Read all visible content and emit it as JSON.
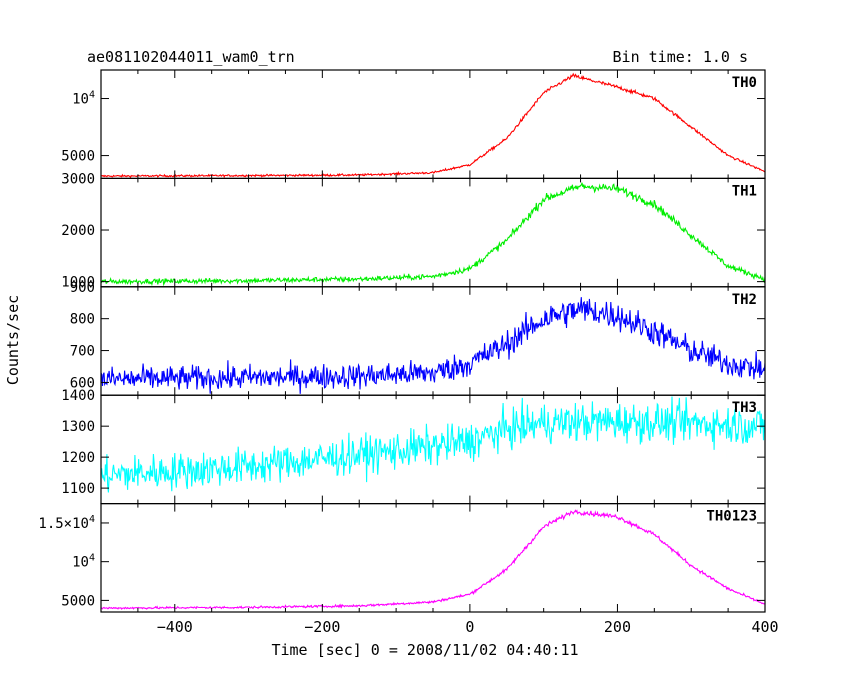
{
  "header": {
    "title": "ae081102044011_wam0_trn",
    "bin_time": "Bin time: 1.0 s"
  },
  "xlabel": "Time [sec] 0 = 2008/11/02 04:40:11",
  "ylabel": "Counts/sec",
  "chart_data": {
    "type": "line",
    "title": "ae081102044011_wam0_trn",
    "xlabel": "Time [sec] 0 = 2008/11/02 04:40:11",
    "ylabel": "Counts/sec",
    "xlim": [
      -500,
      400
    ],
    "xticks": [
      -400,
      -200,
      0,
      200,
      400
    ],
    "grid": false,
    "panels": [
      {
        "name": "TH0",
        "color": "#ff0000",
        "ylim": [
          3000,
          12500
        ],
        "yticks": [
          {
            "v": 5000,
            "label": "5000"
          },
          {
            "v": 10000,
            "label": "10^4"
          }
        ],
        "noise": 60,
        "points": [
          [
            -500,
            3200
          ],
          [
            -300,
            3250
          ],
          [
            -150,
            3300
          ],
          [
            -50,
            3500
          ],
          [
            0,
            4200
          ],
          [
            50,
            6500
          ],
          [
            100,
            10500
          ],
          [
            140,
            12000
          ],
          [
            200,
            11000
          ],
          [
            250,
            10000
          ],
          [
            300,
            7500
          ],
          [
            350,
            5000
          ],
          [
            400,
            3600
          ]
        ]
      },
      {
        "name": "TH1",
        "color": "#00ee00",
        "ylim": [
          900,
          3000
        ],
        "yticks": [
          {
            "v": 1000,
            "label": "1000"
          },
          {
            "v": 2000,
            "label": "2000"
          },
          {
            "v": 3000,
            "label": "3000"
          }
        ],
        "noise": 35,
        "points": [
          [
            -500,
            1000
          ],
          [
            -300,
            1020
          ],
          [
            -150,
            1050
          ],
          [
            -50,
            1100
          ],
          [
            0,
            1250
          ],
          [
            50,
            1800
          ],
          [
            100,
            2600
          ],
          [
            150,
            2850
          ],
          [
            200,
            2800
          ],
          [
            250,
            2500
          ],
          [
            300,
            1900
          ],
          [
            350,
            1300
          ],
          [
            400,
            1050
          ]
        ]
      },
      {
        "name": "TH2",
        "color": "#0000ff",
        "ylim": [
          560,
          900
        ],
        "yticks": [
          {
            "v": 600,
            "label": "600"
          },
          {
            "v": 700,
            "label": "700"
          },
          {
            "v": 800,
            "label": "800"
          },
          {
            "v": 900,
            "label": "900"
          }
        ],
        "noise": 28,
        "points": [
          [
            -500,
            610
          ],
          [
            -300,
            615
          ],
          [
            -150,
            620
          ],
          [
            -50,
            630
          ],
          [
            0,
            660
          ],
          [
            50,
            720
          ],
          [
            100,
            800
          ],
          [
            150,
            830
          ],
          [
            200,
            810
          ],
          [
            250,
            760
          ],
          [
            300,
            700
          ],
          [
            350,
            660
          ],
          [
            400,
            640
          ]
        ]
      },
      {
        "name": "TH3",
        "color": "#00ffff",
        "ylim": [
          1050,
          1400
        ],
        "yticks": [
          {
            "v": 1100,
            "label": "1100"
          },
          {
            "v": 1200,
            "label": "1200"
          },
          {
            "v": 1300,
            "label": "1300"
          },
          {
            "v": 1400,
            "label": "1400"
          }
        ],
        "noise": 42,
        "points": [
          [
            -500,
            1140
          ],
          [
            -300,
            1170
          ],
          [
            -100,
            1220
          ],
          [
            0,
            1250
          ],
          [
            50,
            1290
          ],
          [
            100,
            1310
          ],
          [
            200,
            1315
          ],
          [
            300,
            1310
          ],
          [
            400,
            1300
          ]
        ]
      },
      {
        "name": "TH0123",
        "color": "#ff00ff",
        "ylim": [
          3500,
          17500
        ],
        "yticks": [
          {
            "v": 5000,
            "label": "5000"
          },
          {
            "v": 10000,
            "label": "10^4"
          },
          {
            "v": 15000,
            "label": "1.5×10^4"
          }
        ],
        "noise": 100,
        "points": [
          [
            -500,
            4000
          ],
          [
            -300,
            4100
          ],
          [
            -150,
            4300
          ],
          [
            -50,
            4800
          ],
          [
            0,
            5800
          ],
          [
            50,
            9000
          ],
          [
            100,
            14500
          ],
          [
            140,
            16500
          ],
          [
            200,
            15800
          ],
          [
            250,
            13500
          ],
          [
            300,
            9500
          ],
          [
            350,
            6500
          ],
          [
            400,
            4500
          ]
        ]
      }
    ]
  }
}
